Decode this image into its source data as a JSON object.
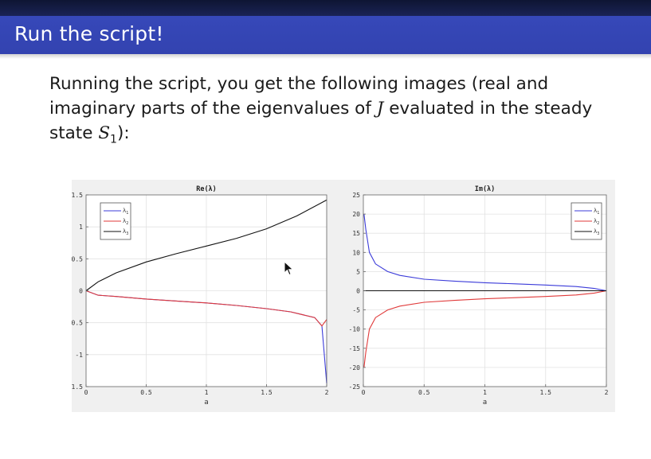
{
  "slide": {
    "title": "Run the script!",
    "paragraph": {
      "line1": "Running the script, you get the following images (real and",
      "line2_pre": "imaginary parts of the eigenvalues of ",
      "line2_var": "J",
      "line2_post": " evaluated in the steady",
      "line3_pre": "state ",
      "line3_var": "S",
      "line3_sub": "1",
      "line3_post": "):"
    }
  },
  "colors": {
    "header_bar": "#3343b0",
    "series_lambda1": "#3b3bd9",
    "series_lambda2": "#e03a3a",
    "series_lambda3": "#111111"
  },
  "chart_data": [
    {
      "type": "line",
      "title": "Re(λ)",
      "xlabel": "a",
      "xlim": [
        0,
        2
      ],
      "ylim": [
        -1.5,
        1.5
      ],
      "xticks": [
        0,
        0.5,
        1,
        1.5,
        2
      ],
      "xtick_labels": [
        "0",
        "0.5",
        "1",
        "1.5",
        "2"
      ],
      "yticks": [
        -1.5,
        -1,
        -0.5,
        0,
        0.5,
        1,
        1.5
      ],
      "ytick_labels": [
        "-1.5",
        "-1",
        "-0.5",
        "0",
        "0.5",
        "1",
        "1.5"
      ],
      "grid": true,
      "legend": "top-left",
      "series": [
        {
          "name": "λ1",
          "color": "#3b3bd9",
          "x": [
            0,
            0.1,
            0.25,
            0.5,
            0.75,
            1.0,
            1.25,
            1.5,
            1.7,
            1.9,
            1.96,
            2.0
          ],
          "y": [
            0,
            -0.07,
            -0.09,
            -0.13,
            -0.16,
            -0.19,
            -0.23,
            -0.28,
            -0.33,
            -0.42,
            -0.55,
            -1.45
          ]
        },
        {
          "name": "λ2",
          "color": "#e03a3a",
          "x": [
            0,
            0.1,
            0.25,
            0.5,
            0.75,
            1.0,
            1.25,
            1.5,
            1.7,
            1.9,
            1.96,
            2.0
          ],
          "y": [
            0,
            -0.07,
            -0.09,
            -0.13,
            -0.16,
            -0.19,
            -0.23,
            -0.28,
            -0.33,
            -0.42,
            -0.55,
            -0.45
          ]
        },
        {
          "name": "λ3",
          "color": "#111111",
          "x": [
            0,
            0.1,
            0.25,
            0.5,
            0.75,
            1.0,
            1.25,
            1.5,
            1.75,
            2.0
          ],
          "y": [
            0,
            0.14,
            0.28,
            0.45,
            0.58,
            0.7,
            0.82,
            0.97,
            1.17,
            1.42
          ]
        }
      ]
    },
    {
      "type": "line",
      "title": "Im(λ)",
      "xlabel": "a",
      "xlim": [
        0,
        2
      ],
      "ylim": [
        -25,
        25
      ],
      "xticks": [
        0,
        0.5,
        1,
        1.5,
        2
      ],
      "xtick_labels": [
        "0",
        "0.5",
        "1",
        "1.5",
        "2"
      ],
      "yticks": [
        -25,
        -20,
        -15,
        -10,
        -5,
        0,
        5,
        10,
        15,
        20,
        25
      ],
      "ytick_labels": [
        "-25",
        "-20",
        "-15",
        "-10",
        "-5",
        "0",
        "5",
        "10",
        "15",
        "20",
        "25"
      ],
      "grid": true,
      "legend": "top-right",
      "series": [
        {
          "name": "λ1",
          "color": "#3b3bd9",
          "x": [
            0.005,
            0.02,
            0.05,
            0.1,
            0.2,
            0.3,
            0.5,
            0.75,
            1.0,
            1.25,
            1.5,
            1.75,
            1.9,
            2.0
          ],
          "y": [
            20,
            16,
            10,
            7,
            5,
            4,
            3,
            2.5,
            2.1,
            1.8,
            1.5,
            1.1,
            0.6,
            0
          ]
        },
        {
          "name": "λ2",
          "color": "#e03a3a",
          "x": [
            0.005,
            0.02,
            0.05,
            0.1,
            0.2,
            0.3,
            0.5,
            0.75,
            1.0,
            1.25,
            1.5,
            1.75,
            1.9,
            2.0
          ],
          "y": [
            -20,
            -16,
            -10,
            -7,
            -5,
            -4,
            -3,
            -2.5,
            -2.1,
            -1.8,
            -1.5,
            -1.1,
            -0.6,
            0
          ]
        },
        {
          "name": "λ3",
          "color": "#111111",
          "x": [
            0,
            2
          ],
          "y": [
            0,
            0
          ]
        }
      ]
    }
  ]
}
